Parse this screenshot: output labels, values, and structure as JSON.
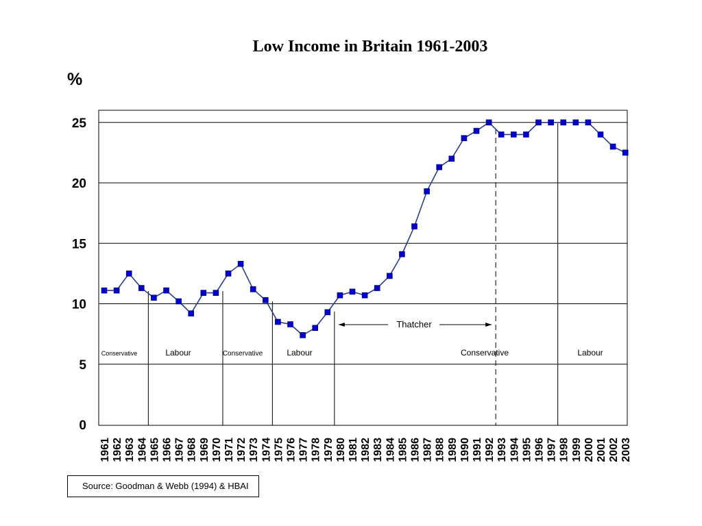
{
  "chart_data": {
    "type": "line",
    "title": "Low Income in Britain 1961-2003",
    "ylabel": "%",
    "xlabel": "",
    "ylim": [
      0,
      26
    ],
    "yticks": [
      0,
      5,
      10,
      15,
      20,
      25
    ],
    "grid": "horizontal",
    "x": [
      "1961",
      "1962",
      "1963",
      "1964",
      "1965",
      "1966",
      "1967",
      "1968",
      "1969",
      "1970",
      "1971",
      "1972",
      "1973",
      "1974",
      "1975",
      "1976",
      "1977",
      "1978",
      "1979",
      "1980",
      "1981",
      "1982",
      "1983",
      "1984",
      "1985",
      "1986",
      "1987",
      "1988",
      "1989",
      "1990",
      "1991",
      "1992",
      "1993",
      "1994",
      "1995",
      "1996",
      "1997",
      "1998",
      "1999",
      "2000",
      "2001",
      "2002",
      "2003"
    ],
    "series": [
      {
        "values": [
          11.1,
          11.1,
          12.5,
          11.3,
          10.5,
          11.1,
          10.2,
          9.2,
          10.9,
          10.9,
          12.5,
          13.3,
          11.2,
          10.3,
          8.5,
          8.3,
          7.4,
          8.0,
          9.3,
          10.7,
          11.0,
          10.7,
          11.3,
          12.3,
          14.1,
          16.4,
          19.3,
          21.3,
          22.0,
          23.7,
          24.3,
          25.0,
          24.0,
          24.0,
          24.0,
          25.0,
          25.0,
          25.0,
          25.0,
          25.0,
          24.0,
          23.0,
          22.5
        ],
        "color": "#0000cc",
        "line_color": "#2b3a8c"
      }
    ],
    "periods": [
      {
        "label": "Conservative",
        "start": "1961",
        "end": "1964"
      },
      {
        "label": "Labour",
        "start": "1964",
        "end": "1970"
      },
      {
        "label": "Conservative",
        "start": "1970",
        "end": "1974"
      },
      {
        "label": "Labour",
        "start": "1974",
        "end": "1979"
      },
      {
        "label": "Conservative",
        "start": "1979",
        "end": "1997"
      },
      {
        "label": "Labour",
        "start": "1997",
        "end": "2003"
      }
    ],
    "annotation": {
      "label": "Thatcher",
      "start": "1979",
      "end": "1990"
    }
  },
  "source": "Source: Goodman & Webb (1994) & HBAI"
}
